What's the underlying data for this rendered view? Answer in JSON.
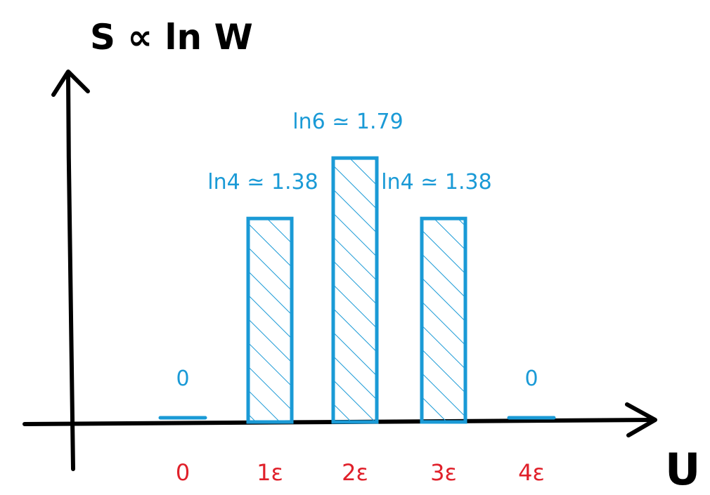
{
  "chart_data": {
    "type": "bar",
    "title": "",
    "ylabel": "S ∝ ln W",
    "xlabel": "U",
    "categories": [
      "0",
      "1ε",
      "2ε",
      "3ε",
      "4ε"
    ],
    "values": [
      0,
      1.38,
      1.79,
      1.38,
      0
    ],
    "data_labels": [
      "0",
      "ln4 ≃ 1.38",
      "ln6 ≃ 1.79",
      "ln4 ≃ 1.38",
      "0"
    ],
    "ylim": [
      0,
      2.0
    ],
    "grid": false,
    "legend": "none",
    "bar_fill": "hatched"
  },
  "colors": {
    "bars": "#1a9ad6",
    "data_labels": "#1a9ad6",
    "tick_labels": "#e0202a",
    "axes": "#000000"
  }
}
